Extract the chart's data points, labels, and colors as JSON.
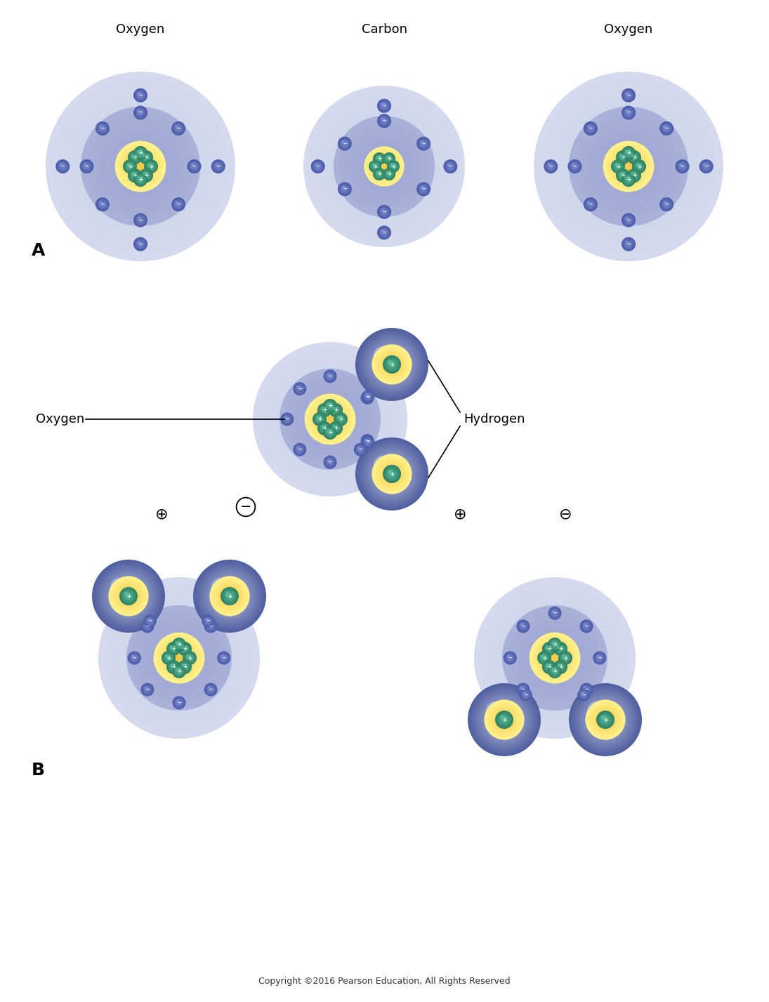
{
  "bg_color": "#ffffff",
  "shell1_light": "#dde1f0",
  "shell1_mid": "#c8cee8",
  "shell2_light": "#b8bfdf",
  "shell2_mid": "#9aa2d0",
  "nucleus_yellow_light": "#fef08a",
  "nucleus_yellow_dark": "#f5c842",
  "proton_light": "#5bbfa0",
  "proton_dark": "#2e8060",
  "electron_light": "#8090cc",
  "electron_dark": "#4a5aaa",
  "hydrogen_light": "#c5cbe8",
  "hydrogen_mid": "#9aa2cc",
  "hydrogen_dark": "#5060a0",
  "title_A": "A",
  "title_B": "B",
  "label_oxygen": "Oxygen",
  "label_carbon": "Carbon",
  "label_hydrogen": "Hydrogen",
  "copyright": "Copyright ©2016 Pearson Education, All Rights Reserved"
}
